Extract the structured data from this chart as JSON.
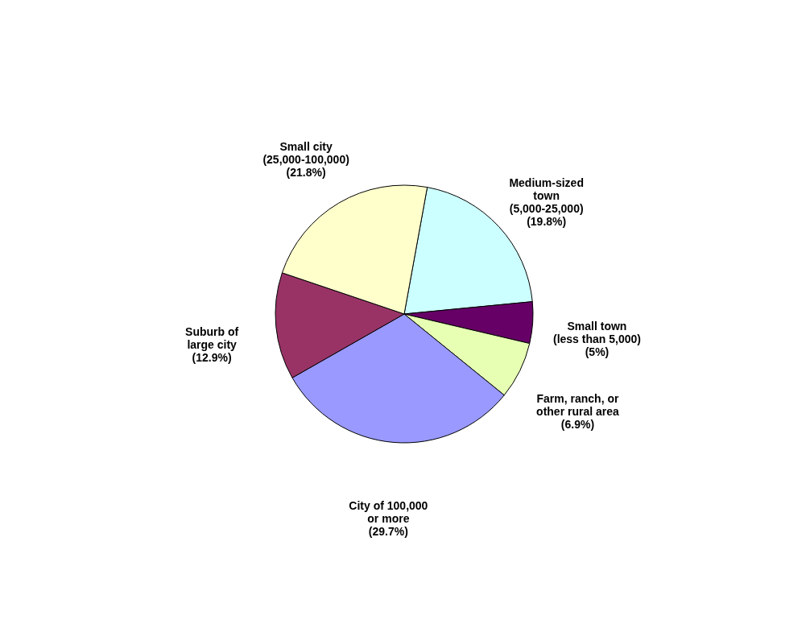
{
  "chart_data": {
    "type": "pie",
    "categories": [
      "Medium-sized\ntown\n(5,000-25,000)",
      "Small town\n(less than 5,000)",
      "Farm, ranch, or\nother rural area",
      "City of 100,000\nor more",
      "Suburb of\nlarge city",
      "Small city\n(25,000-100,000)"
    ],
    "values": [
      19.8,
      5,
      6.9,
      29.7,
      12.9,
      21.8
    ],
    "value_labels": [
      "(19.8%)",
      "(5%)",
      "(6.9%)",
      "(29.7%)",
      "(12.9%)",
      "(21.8%)"
    ],
    "colors": [
      "#ccffff",
      "#660066",
      "#e6ffb3",
      "#9999ff",
      "#993366",
      "#ffffcc"
    ],
    "legend": false
  }
}
